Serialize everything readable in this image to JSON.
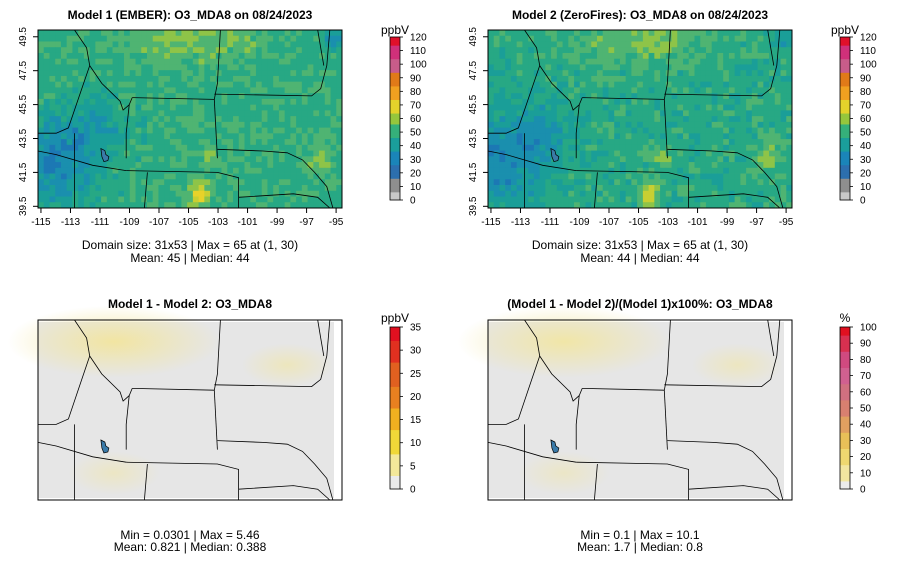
{
  "chart_data": [
    {
      "type": "heatmap",
      "title": "Model 1 (EMBER): O3_MDA8 on 08/24/2023",
      "xticks": [
        "-115",
        "-113",
        "-111",
        "-109",
        "-107",
        "-105",
        "-103",
        "-101",
        "-99",
        "-97",
        "-95"
      ],
      "yticks": [
        "39.5",
        "41.5",
        "43.5",
        "45.5",
        "47.5",
        "49.5"
      ],
      "xlim": [
        -115.2,
        -94.6
      ],
      "ylim": [
        39.4,
        49.9
      ],
      "legend_title": "ppbV",
      "legend_ticks": [
        "0",
        "10",
        "20",
        "30",
        "40",
        "50",
        "60",
        "70",
        "80",
        "90",
        "100",
        "110",
        "120"
      ],
      "stats_line1": "Domain size: 31x53 | Max = 65 at (1, 30)",
      "stats_line2": "Mean: 45 |  Median: 44"
    },
    {
      "type": "heatmap",
      "title": "Model 2 (ZeroFires): O3_MDA8 on 08/24/2023",
      "xticks": [
        "-115",
        "-113",
        "-111",
        "-109",
        "-107",
        "-105",
        "-103",
        "-101",
        "-99",
        "-97",
        "-95"
      ],
      "yticks": [
        "39.5",
        "41.5",
        "43.5",
        "45.5",
        "47.5",
        "49.5"
      ],
      "xlim": [
        -115.2,
        -94.6
      ],
      "ylim": [
        39.4,
        49.9
      ],
      "legend_title": "ppbV",
      "legend_ticks": [
        "0",
        "10",
        "20",
        "30",
        "40",
        "50",
        "60",
        "70",
        "80",
        "90",
        "100",
        "110",
        "120"
      ],
      "stats_line1": "Domain size: 31x53 | Max = 65 at (1, 30)",
      "stats_line2": "Mean: 44 |  Median: 44"
    },
    {
      "type": "heatmap",
      "title": "Model 1 - Model 2: O3_MDA8",
      "legend_title": "ppbV",
      "legend_ticks": [
        "0",
        "5",
        "10",
        "15",
        "20",
        "25",
        "30",
        "35"
      ],
      "stats_line1": "Min = 0.0301 | Max = 5.46",
      "stats_line2": "Mean: 0.821 |  Median: 0.388"
    },
    {
      "type": "heatmap",
      "title": "(Model 1 - Model 2)/(Model 1)x100%: O3_MDA8",
      "legend_title": "%",
      "legend_ticks": [
        "0",
        "10",
        "20",
        "30",
        "40",
        "50",
        "60",
        "70",
        "80",
        "90",
        "100"
      ],
      "stats_line1": "Min = 0.1 | Max = 10.1",
      "stats_line2": "Mean: 1.7 |  Median: 0.8"
    }
  ],
  "colors": {
    "conc_scale": [
      "#c8c8c8",
      "#8e8e8e",
      "#2c6fae",
      "#1a85b8",
      "#1a9e9b",
      "#35b07a",
      "#96c63c",
      "#e4d22b",
      "#f0a020",
      "#e07a18",
      "#c85c8a",
      "#d0307a",
      "#e0102a"
    ],
    "diff_scale": [
      "#ebebeb",
      "#f3e89a",
      "#f0d838",
      "#f0b020",
      "#e88020",
      "#e06020",
      "#e03020",
      "#e01020"
    ],
    "pct_scale": [
      "#ebebeb",
      "#f2e6a0",
      "#eed870",
      "#e8c058",
      "#e0a060",
      "#d88070",
      "#d07080",
      "#d06090",
      "#d04a80",
      "#d83050",
      "#e01020"
    ]
  }
}
